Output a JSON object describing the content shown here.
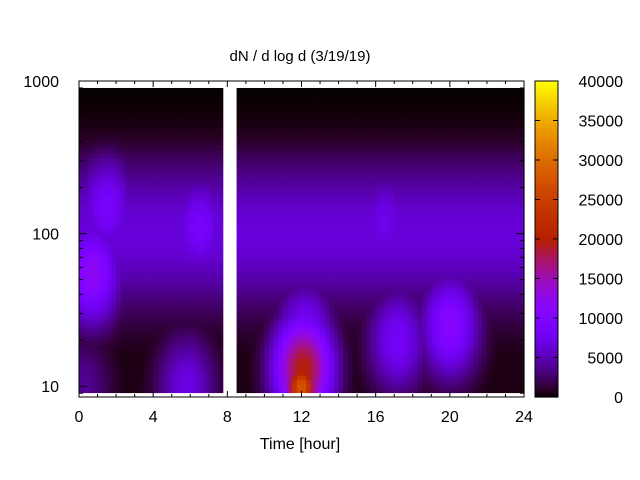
{
  "chart_data": {
    "type": "heatmap",
    "title": "dN / d log d (3/19/19)",
    "xlabel": "Time [hour]",
    "ylabel": "",
    "x_range": [
      0,
      24
    ],
    "y_range": [
      8.5,
      1000
    ],
    "y_scale": "log",
    "x_ticks": [
      {
        "value": 0,
        "label": "0"
      },
      {
        "value": 4,
        "label": "4"
      },
      {
        "value": 8,
        "label": "8"
      },
      {
        "value": 12,
        "label": "12"
      },
      {
        "value": 16,
        "label": "16"
      },
      {
        "value": 20,
        "label": "20"
      },
      {
        "value": 24,
        "label": "24"
      }
    ],
    "y_ticks": [
      {
        "value": 10,
        "label": "10"
      },
      {
        "value": 100,
        "label": "100"
      },
      {
        "value": 1000,
        "label": "1000"
      }
    ],
    "colorbar": {
      "range": [
        0,
        40000
      ],
      "ticks": [
        {
          "value": 0,
          "label": "0"
        },
        {
          "value": 5000,
          "label": "5000"
        },
        {
          "value": 10000,
          "label": "10000"
        },
        {
          "value": 15000,
          "label": "15000"
        },
        {
          "value": 20000,
          "label": "20000"
        },
        {
          "value": 25000,
          "label": "25000"
        },
        {
          "value": 30000,
          "label": "30000"
        },
        {
          "value": 35000,
          "label": "35000"
        },
        {
          "value": 40000,
          "label": "40000"
        }
      ],
      "palette": "gnuplot (black-purple-red-orange-yellow)"
    },
    "data_extent": {
      "x": [
        0,
        24
      ],
      "y": [
        9.1,
        900
      ]
    },
    "data_gaps": [
      {
        "x_start": 7.7,
        "x_end": 8.4
      }
    ],
    "features": [
      {
        "x": 12.0,
        "y": 10,
        "value": 28000,
        "note": "peak"
      },
      {
        "x": 12.1,
        "y": 13,
        "value": 20000
      },
      {
        "x": 12.2,
        "y": 22,
        "value": 9000
      },
      {
        "x": 0.7,
        "y": 55,
        "value": 12000
      },
      {
        "x": 1.5,
        "y": 150,
        "value": 9000
      },
      {
        "x": 6.5,
        "y": 110,
        "value": 9000
      },
      {
        "x": 20.0,
        "y": 25,
        "value": 11000
      },
      {
        "x": 17.2,
        "y": 20,
        "value": 8500
      },
      {
        "x": 5.8,
        "y": 10,
        "value": 7000
      },
      {
        "x": 0.2,
        "y": 10,
        "value": 4000
      },
      {
        "x": 16.5,
        "y": 120,
        "value": 7500
      }
    ]
  }
}
